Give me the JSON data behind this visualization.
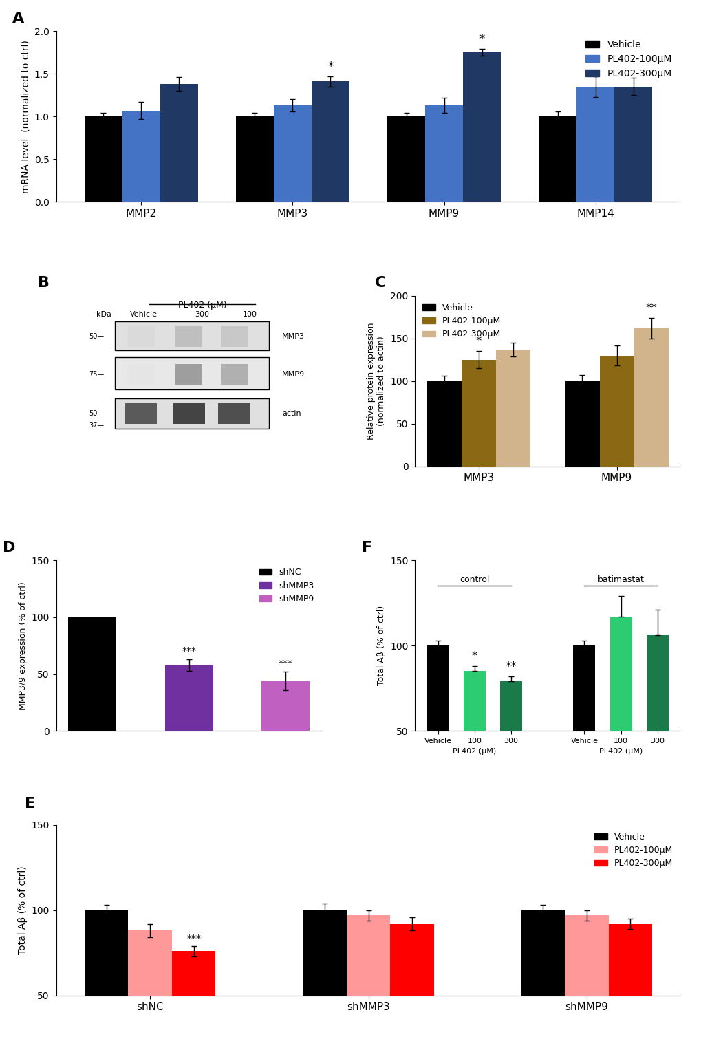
{
  "panel_A": {
    "categories": [
      "MMP2",
      "MMP3",
      "MMP9",
      "MMP14"
    ],
    "vehicle": [
      1.0,
      1.01,
      1.0,
      1.0
    ],
    "pl100": [
      1.07,
      1.13,
      1.13,
      1.35
    ],
    "pl300": [
      1.38,
      1.41,
      1.75,
      1.35
    ],
    "vehicle_err": [
      0.04,
      0.03,
      0.04,
      0.06
    ],
    "pl100_err": [
      0.1,
      0.07,
      0.09,
      0.12
    ],
    "pl300_err": [
      0.08,
      0.06,
      0.04,
      0.1
    ],
    "ylabel": "mRNA level  (normalized to ctrl)",
    "ylim": [
      0,
      2.0
    ],
    "yticks": [
      0,
      0.5,
      1.0,
      1.5,
      2.0
    ],
    "sig_pl300": [
      "",
      "*",
      "*",
      ""
    ],
    "colors": {
      "vehicle": "#000000",
      "pl100": "#4472C4",
      "pl300": "#1F3864"
    }
  },
  "panel_C": {
    "categories": [
      "MMP3",
      "MMP9"
    ],
    "vehicle": [
      100,
      100
    ],
    "pl100": [
      125,
      130
    ],
    "pl300": [
      137,
      162
    ],
    "vehicle_err": [
      6,
      7
    ],
    "pl100_err": [
      10,
      12
    ],
    "pl300_err": [
      8,
      12
    ],
    "ylabel": "Relative protein expression\n(normalized to actin)",
    "ylim": [
      0,
      200
    ],
    "yticks": [
      0,
      50,
      100,
      150,
      200
    ],
    "sig_pl100": [
      "*",
      ""
    ],
    "sig_pl300": [
      "",
      "**"
    ],
    "colors": {
      "vehicle": "#000000",
      "pl100": "#8B6914",
      "pl300": "#D2B48C"
    }
  },
  "panel_D": {
    "categories": [
      "shNC",
      "shMMP3",
      "shMMP9"
    ],
    "values": [
      100,
      58,
      44
    ],
    "errors": [
      0,
      5,
      8
    ],
    "ylabel": "MMP3/9 expression (% of ctrl)",
    "ylim": [
      0,
      150
    ],
    "yticks": [
      0,
      50,
      100,
      150
    ],
    "sig": [
      "",
      "***",
      "***"
    ],
    "colors": [
      "#000000",
      "#7030A0",
      "#C060C0"
    ]
  },
  "panel_E": {
    "groups": [
      "shNC",
      "shMMP3",
      "shMMP9"
    ],
    "vehicle": [
      100,
      100,
      100
    ],
    "pl100": [
      88,
      97,
      97
    ],
    "pl300": [
      76,
      92,
      92
    ],
    "vehicle_err": [
      3,
      4,
      3
    ],
    "pl100_err": [
      4,
      3,
      3
    ],
    "pl300_err": [
      3,
      4,
      3
    ],
    "ylabel": "Total Aβ (% of ctrl)",
    "ylim": [
      50,
      150
    ],
    "yticks": [
      50,
      100,
      150
    ],
    "sig_pl300_shNC": "***",
    "colors": {
      "vehicle": "#000000",
      "pl100": "#FF9999",
      "pl300": "#FF0000"
    }
  },
  "panel_F": {
    "groups": [
      "control",
      "batimastat"
    ],
    "vehicle": [
      100,
      100
    ],
    "pl100": [
      85,
      117
    ],
    "pl300": [
      79,
      106
    ],
    "vehicle_err": [
      3,
      3
    ],
    "pl100_err": [
      3,
      12
    ],
    "pl300_err": [
      3,
      15
    ],
    "ylabel": "Total Aβ (% of ctrl)",
    "ylim": [
      50,
      150
    ],
    "yticks": [
      50,
      100,
      150
    ],
    "sig_control_100": "*",
    "sig_control_300": "**",
    "colors": {
      "vehicle": "#000000",
      "pl100": "#2ECC71",
      "pl300": "#1A7A4A"
    },
    "xlabel_groups": [
      "Vehicle",
      "100",
      "300",
      "Vehicle",
      "100",
      "300"
    ],
    "xlabel_pl402": [
      "",
      "PL402 (μM)",
      "",
      "",
      "PL402 (μM)",
      ""
    ]
  },
  "background_color": "#FFFFFF"
}
